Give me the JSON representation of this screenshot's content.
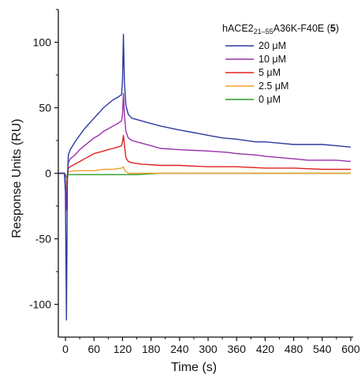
{
  "chart_data": {
    "type": "line",
    "title": "",
    "xlabel": "Time (s)",
    "ylabel": "Response Units (RU)",
    "xlim": [
      -15,
      605
    ],
    "ylim": [
      -125,
      125
    ],
    "x_ticks": [
      0,
      60,
      120,
      180,
      240,
      300,
      360,
      420,
      480,
      540,
      600
    ],
    "y_ticks": [
      -100,
      -50,
      0,
      50,
      100
    ],
    "grid": false,
    "legend": {
      "placement": "top-right",
      "title": {
        "base": "hACE2",
        "sub": "21–55",
        "rest": "A36K-F40E (",
        "bold": "5",
        "close": ")"
      }
    },
    "series": [
      {
        "name": "20 μM",
        "color": "#2b3a9e",
        "points": [
          [
            -15,
            0
          ],
          [
            -2,
            0
          ],
          [
            0,
            -15
          ],
          [
            2,
            -112
          ],
          [
            4,
            -5
          ],
          [
            6,
            14
          ],
          [
            10,
            18
          ],
          [
            20,
            24
          ],
          [
            30,
            29
          ],
          [
            40,
            34
          ],
          [
            50,
            38
          ],
          [
            60,
            42
          ],
          [
            70,
            46
          ],
          [
            80,
            50
          ],
          [
            90,
            53
          ],
          [
            100,
            56
          ],
          [
            110,
            58
          ],
          [
            118,
            60
          ],
          [
            120,
            70
          ],
          [
            122,
            106
          ],
          [
            124,
            70
          ],
          [
            127,
            52
          ],
          [
            132,
            45
          ],
          [
            140,
            42
          ],
          [
            160,
            40
          ],
          [
            180,
            38
          ],
          [
            200,
            36
          ],
          [
            240,
            33
          ],
          [
            270,
            31
          ],
          [
            300,
            29
          ],
          [
            330,
            27
          ],
          [
            360,
            26
          ],
          [
            400,
            24
          ],
          [
            420,
            24
          ],
          [
            450,
            23
          ],
          [
            480,
            22
          ],
          [
            510,
            22
          ],
          [
            540,
            22
          ],
          [
            570,
            21
          ],
          [
            600,
            20
          ]
        ]
      },
      {
        "name": "10 μM",
        "color": "#9b2fae",
        "points": [
          [
            -15,
            0
          ],
          [
            -2,
            0
          ],
          [
            0,
            -10
          ],
          [
            2,
            -28
          ],
          [
            4,
            -3
          ],
          [
            6,
            8
          ],
          [
            10,
            11
          ],
          [
            20,
            14
          ],
          [
            30,
            18
          ],
          [
            40,
            21
          ],
          [
            50,
            24
          ],
          [
            60,
            27
          ],
          [
            70,
            29
          ],
          [
            80,
            32
          ],
          [
            90,
            34
          ],
          [
            100,
            36
          ],
          [
            110,
            38
          ],
          [
            118,
            40
          ],
          [
            120,
            45
          ],
          [
            122,
            61
          ],
          [
            124,
            45
          ],
          [
            127,
            32
          ],
          [
            132,
            27
          ],
          [
            140,
            25
          ],
          [
            160,
            23
          ],
          [
            180,
            21
          ],
          [
            200,
            19
          ],
          [
            240,
            18
          ],
          [
            300,
            17
          ],
          [
            340,
            16
          ],
          [
            360,
            15
          ],
          [
            400,
            14
          ],
          [
            420,
            13
          ],
          [
            450,
            12
          ],
          [
            480,
            11
          ],
          [
            510,
            10
          ],
          [
            540,
            10
          ],
          [
            570,
            10
          ],
          [
            600,
            9
          ]
        ]
      },
      {
        "name": "5 μM",
        "color": "#e02020",
        "points": [
          [
            -15,
            0
          ],
          [
            -2,
            0
          ],
          [
            0,
            -10
          ],
          [
            2,
            -26
          ],
          [
            4,
            -2
          ],
          [
            6,
            4
          ],
          [
            10,
            5
          ],
          [
            20,
            7
          ],
          [
            30,
            9
          ],
          [
            40,
            11
          ],
          [
            50,
            13
          ],
          [
            60,
            15
          ],
          [
            70,
            16
          ],
          [
            80,
            17
          ],
          [
            90,
            18
          ],
          [
            100,
            19
          ],
          [
            110,
            20
          ],
          [
            118,
            21
          ],
          [
            120,
            24
          ],
          [
            122,
            29
          ],
          [
            124,
            22
          ],
          [
            127,
            12
          ],
          [
            132,
            9
          ],
          [
            140,
            8
          ],
          [
            160,
            7
          ],
          [
            200,
            6
          ],
          [
            240,
            6
          ],
          [
            300,
            5
          ],
          [
            360,
            5
          ],
          [
            420,
            4
          ],
          [
            480,
            4
          ],
          [
            540,
            3
          ],
          [
            600,
            3
          ]
        ]
      },
      {
        "name": "2.5 μM",
        "color": "#f0a030",
        "points": [
          [
            -15,
            0
          ],
          [
            -2,
            0
          ],
          [
            0,
            -3
          ],
          [
            2,
            -12
          ],
          [
            4,
            -1
          ],
          [
            6,
            1
          ],
          [
            20,
            2
          ],
          [
            40,
            2
          ],
          [
            60,
            2
          ],
          [
            80,
            3
          ],
          [
            100,
            3
          ],
          [
            118,
            4
          ],
          [
            122,
            5
          ],
          [
            125,
            2
          ],
          [
            132,
            0
          ],
          [
            150,
            0
          ],
          [
            200,
            0
          ],
          [
            260,
            0
          ],
          [
            300,
            0
          ],
          [
            360,
            0
          ],
          [
            420,
            0
          ],
          [
            480,
            0
          ],
          [
            540,
            0
          ],
          [
            600,
            0
          ]
        ]
      },
      {
        "name": "0 μM",
        "color": "#2a9a2a",
        "points": [
          [
            -15,
            0
          ],
          [
            -2,
            0
          ],
          [
            0,
            -1
          ],
          [
            2,
            -3
          ],
          [
            4,
            -1
          ],
          [
            6,
            -1
          ],
          [
            30,
            -1
          ],
          [
            60,
            -1
          ],
          [
            90,
            -1
          ],
          [
            120,
            -1
          ],
          [
            150,
            -1
          ],
          [
            200,
            0
          ],
          [
            260,
            0
          ],
          [
            320,
            0
          ],
          [
            400,
            0
          ],
          [
            460,
            0
          ],
          [
            520,
            0
          ],
          [
            600,
            0
          ]
        ]
      }
    ]
  }
}
